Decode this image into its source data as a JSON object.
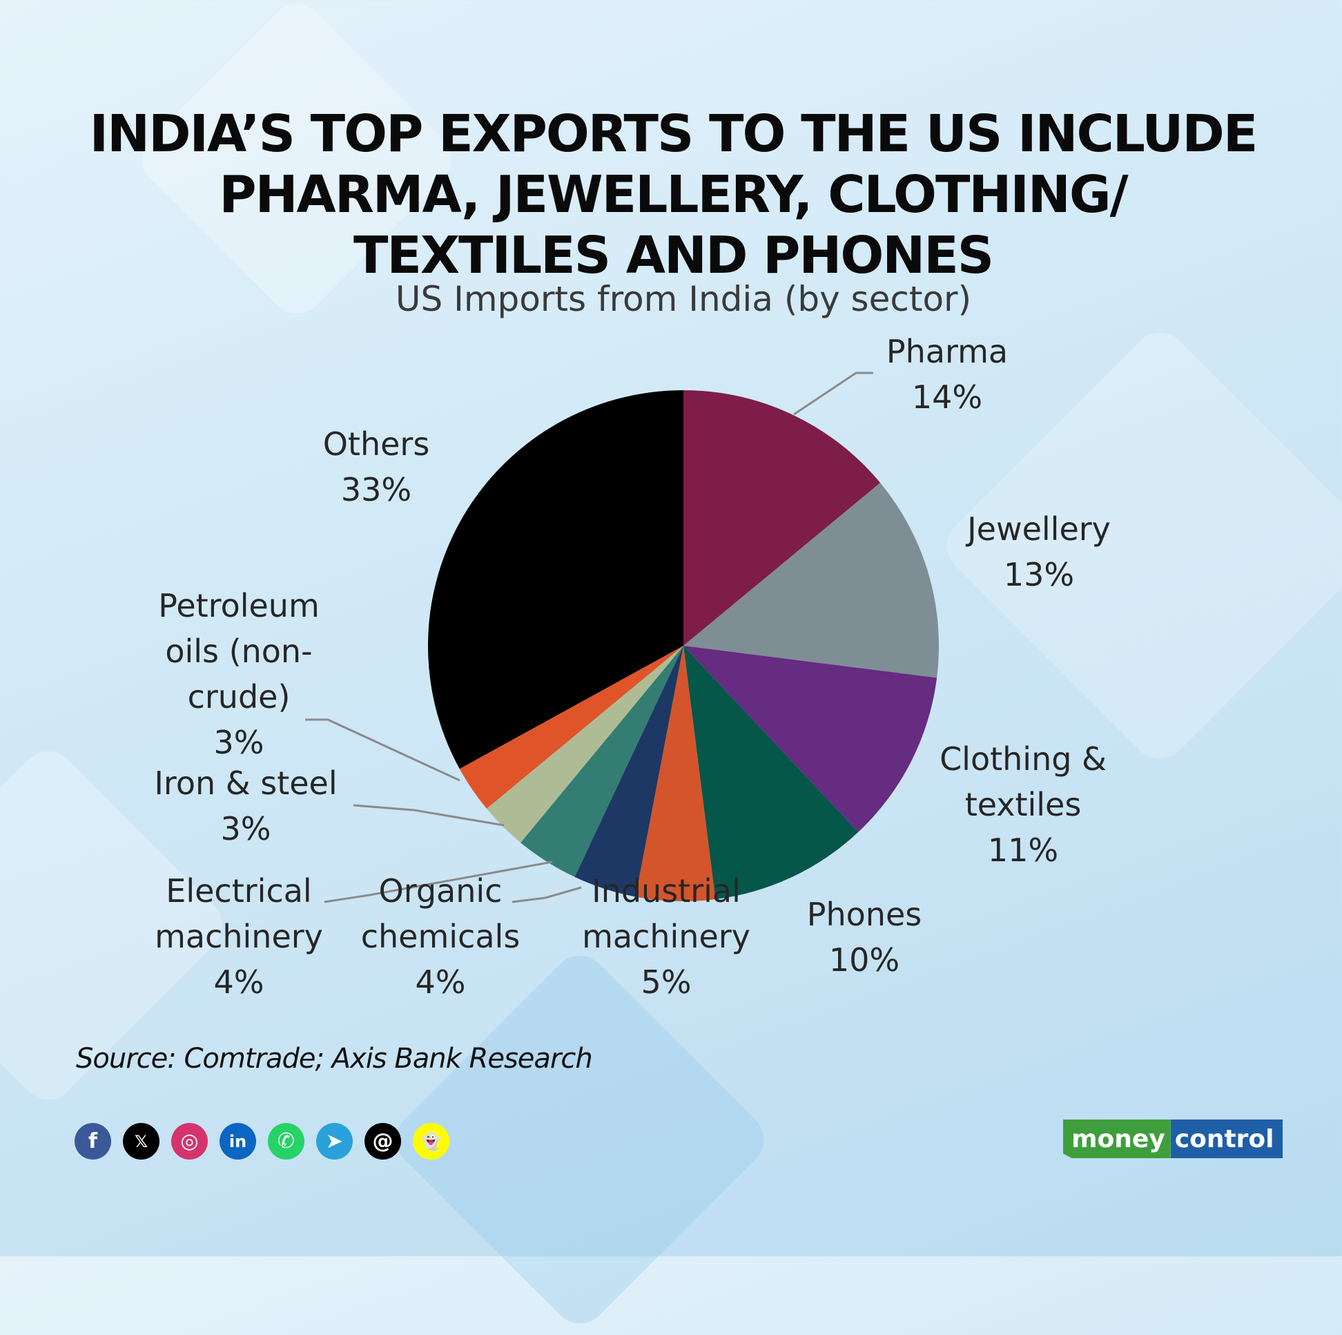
{
  "headline": {
    "lines": [
      "INDIA’S TOP EXPORTS TO THE US INCLUDE",
      "PHARMA, JEWELLERY, CLOTHING/",
      "TEXTILES AND PHONES"
    ]
  },
  "chart_data": {
    "type": "pie",
    "title": "US Imports from India (by sector)",
    "slices": [
      {
        "label": [
          "Pharma"
        ],
        "value": 14,
        "value_label": "14%",
        "color": "#7e1d4a"
      },
      {
        "label": [
          "Jewellery"
        ],
        "value": 13,
        "value_label": "13%",
        "color": "#7f8e94"
      },
      {
        "label": [
          "Clothing &",
          "textiles"
        ],
        "value": 11,
        "value_label": "11%",
        "color": "#652c82"
      },
      {
        "label": [
          "Phones"
        ],
        "value": 10,
        "value_label": "10%",
        "color": "#05574a"
      },
      {
        "label": [
          "Industrial",
          "machinery"
        ],
        "value": 5,
        "value_label": "5%",
        "color": "#d4552b"
      },
      {
        "label": [
          "Organic",
          "chemicals"
        ],
        "value": 4,
        "value_label": "4%",
        "color": "#1d3864"
      },
      {
        "label": [
          "Electrical",
          "machinery"
        ],
        "value": 4,
        "value_label": "4%",
        "color": "#347d73"
      },
      {
        "label": [
          "Iron & steel"
        ],
        "value": 3,
        "value_label": "3%",
        "color": "#aebc96"
      },
      {
        "label": [
          "Petroleum",
          "oils (non-",
          "crude)"
        ],
        "value": 3,
        "value_label": "3%",
        "color": "#e0542a"
      },
      {
        "label": [
          "Others"
        ],
        "value": 33,
        "value_label": "33%",
        "color": "#000000"
      }
    ]
  },
  "source": "Source: Comtrade; Axis Bank Research",
  "social_icons": [
    {
      "name": "facebook-icon",
      "glyph": "f",
      "color": "#3b5998"
    },
    {
      "name": "x-icon",
      "glyph": "𝕏",
      "color": "#000000"
    },
    {
      "name": "instagram-icon",
      "glyph": "◎",
      "color": "#d6336c"
    },
    {
      "name": "linkedin-icon",
      "glyph": "in",
      "color": "#0a66c2"
    },
    {
      "name": "whatsapp-icon",
      "glyph": "✆",
      "color": "#25d366"
    },
    {
      "name": "telegram-icon",
      "glyph": "➤",
      "color": "#2aa1da"
    },
    {
      "name": "threads-icon",
      "glyph": "@",
      "color": "#000000"
    },
    {
      "name": "snapchat-icon",
      "glyph": "👻",
      "color": "#fffc00"
    }
  ],
  "logo": {
    "part1": "money",
    "part2": "control"
  }
}
